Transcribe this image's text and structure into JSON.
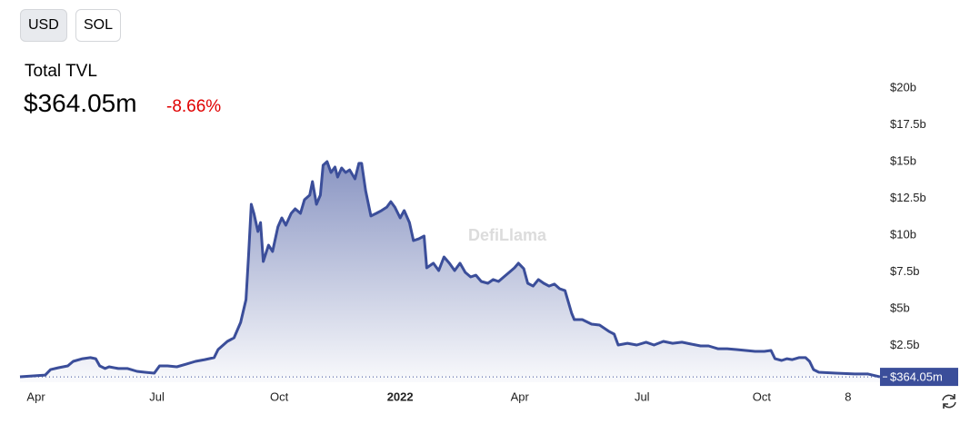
{
  "buttons": [
    "USD",
    "SOL"
  ],
  "chart_data": {
    "type": "area",
    "title": "Total TVL",
    "current_label": "$364.05m",
    "change": "-8.66%",
    "watermark": "DefiLlama",
    "color": "#3b4e9a",
    "change_color": "#e00000",
    "x": [
      0,
      19,
      23,
      29,
      36,
      40,
      47,
      53,
      57,
      60,
      64,
      67,
      74,
      81,
      88,
      94,
      101,
      105,
      111,
      118,
      125,
      132,
      139,
      146,
      149,
      156,
      161,
      166,
      170,
      172,
      174,
      176,
      179,
      181,
      183,
      187,
      190,
      194,
      197,
      200,
      204,
      207,
      211,
      214,
      218,
      220,
      223,
      226,
      228,
      231,
      234,
      237,
      239,
      242,
      245,
      248,
      252,
      255,
      257,
      260,
      264,
      268,
      272,
      276,
      279,
      282,
      286,
      289,
      293,
      296,
      300,
      304,
      306,
      311,
      315,
      319,
      323,
      327,
      331,
      335,
      339,
      343,
      347,
      352,
      356,
      360,
      364,
      368,
      372,
      375,
      379,
      382,
      386,
      390,
      394,
      398,
      402,
      406,
      410,
      415,
      417,
      423,
      430,
      436,
      443,
      447,
      450,
      457,
      464,
      471,
      477,
      484,
      491,
      498,
      505,
      512,
      518,
      525,
      532,
      539,
      546,
      553,
      560,
      565,
      568,
      573,
      577,
      581,
      586,
      591,
      594,
      597,
      601,
      614,
      628,
      638,
      647
    ],
    "values": [
      0.37,
      0.49,
      0.86,
      0.99,
      1.11,
      1.42,
      1.6,
      1.67,
      1.6,
      1.11,
      0.93,
      1.05,
      0.93,
      0.93,
      0.74,
      0.68,
      0.62,
      1.11,
      1.11,
      1.05,
      1.23,
      1.42,
      1.54,
      1.67,
      2.22,
      2.78,
      3.02,
      4.07,
      5.62,
      8.7,
      12.1,
      11.48,
      10.25,
      10.86,
      8.21,
      9.32,
      8.89,
      10.56,
      11.17,
      10.68,
      11.48,
      11.79,
      11.48,
      12.41,
      12.72,
      13.64,
      12.1,
      12.72,
      14.75,
      15.0,
      14.26,
      14.63,
      13.95,
      14.57,
      14.26,
      14.44,
      13.83,
      14.88,
      14.88,
      13.02,
      11.3,
      11.48,
      11.67,
      11.91,
      12.28,
      11.91,
      11.17,
      11.67,
      10.86,
      9.63,
      9.75,
      9.94,
      7.78,
      8.09,
      7.59,
      8.52,
      8.09,
      7.59,
      8.09,
      7.47,
      7.16,
      7.28,
      6.85,
      6.73,
      6.98,
      6.85,
      7.16,
      7.47,
      7.78,
      8.09,
      7.72,
      6.73,
      6.54,
      6.98,
      6.73,
      6.54,
      6.67,
      6.36,
      6.23,
      4.69,
      4.26,
      4.26,
      3.95,
      3.89,
      3.46,
      3.27,
      2.53,
      2.65,
      2.53,
      2.72,
      2.53,
      2.78,
      2.65,
      2.72,
      2.59,
      2.47,
      2.47,
      2.28,
      2.28,
      2.22,
      2.16,
      2.1,
      2.1,
      2.16,
      1.6,
      1.48,
      1.6,
      1.54,
      1.67,
      1.67,
      1.42,
      0.86,
      0.68,
      0.62,
      0.56,
      0.56,
      0.36405
    ],
    "xlim": [
      0,
      647
    ],
    "xticks": [
      {
        "value": 12,
        "label": "Apr"
      },
      {
        "value": 103,
        "label": "Jul"
      },
      {
        "value": 195,
        "label": "Oct"
      },
      {
        "value": 286,
        "label": "2022"
      },
      {
        "value": 376,
        "label": "Apr"
      },
      {
        "value": 468,
        "label": "Jul"
      },
      {
        "value": 558,
        "label": "Oct"
      },
      {
        "value": 623,
        "label": "8"
      }
    ],
    "ylim": [
      0,
      20
    ],
    "yticks": [
      {
        "value": 2.5,
        "label": "$2.5b"
      },
      {
        "value": 5,
        "label": "$5b"
      },
      {
        "value": 7.5,
        "label": "$7.5b"
      },
      {
        "value": 10,
        "label": "$10b"
      },
      {
        "value": 12.5,
        "label": "$12.5b"
      },
      {
        "value": 15,
        "label": "$15b"
      },
      {
        "value": 17.5,
        "label": "$17.5b"
      },
      {
        "value": 20,
        "label": "$20b"
      }
    ],
    "grid": false
  }
}
